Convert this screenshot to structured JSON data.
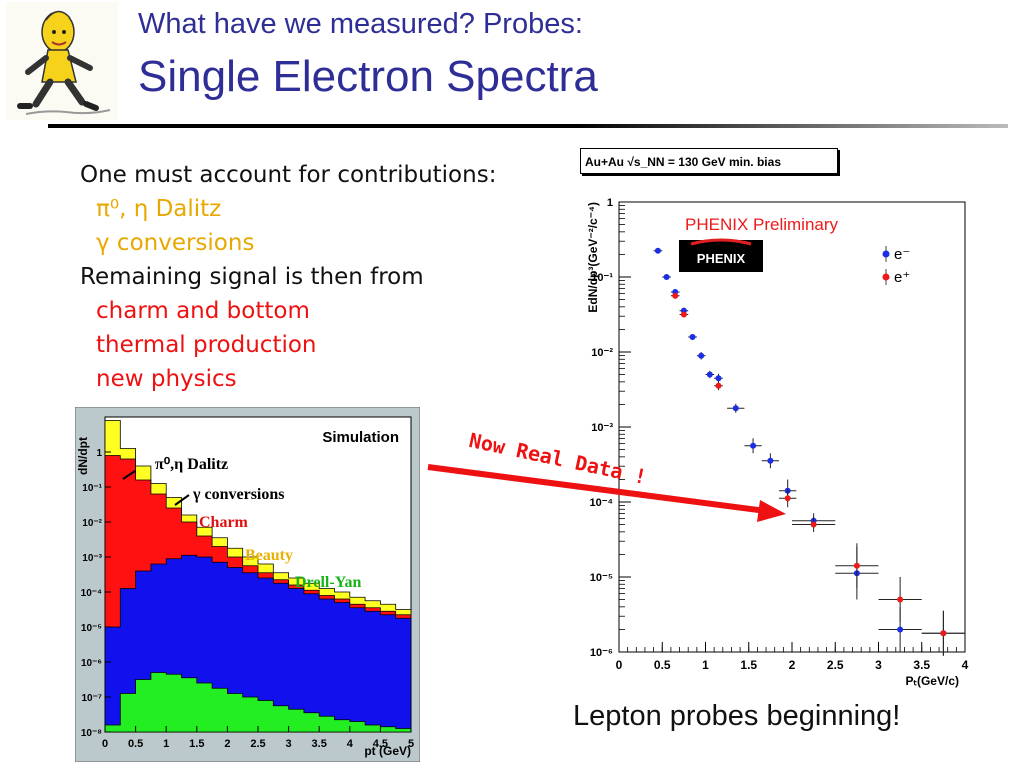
{
  "header": {
    "title_line1": "What have we measured? Probes:",
    "title_line2": "Single Electron Spectra"
  },
  "bullets": [
    {
      "text": "One must account for contributions:",
      "level": 0,
      "color": "black"
    },
    {
      "text": "π⁰, η Dalitz",
      "level": 1,
      "color": "yellow"
    },
    {
      "text": "γ conversions",
      "level": 1,
      "color": "yellow"
    },
    {
      "text": "Remaining signal is then from",
      "level": 0,
      "color": "black"
    },
    {
      "text": "charm and bottom",
      "level": 1,
      "color": "red"
    },
    {
      "text": "thermal production",
      "level": 1,
      "color": "red"
    },
    {
      "text": "new physics",
      "level": 1,
      "color": "red"
    }
  ],
  "colors": {
    "title": "#2e2e96",
    "yellow_text": "#e8a800",
    "red_text": "#ee1111",
    "e_minus_marker": "#1a2ee6",
    "e_plus_marker": "#ee1a1a",
    "sim_yellow": "#ffff22",
    "sim_red": "#ff1111",
    "sim_blue": "#1111ee",
    "sim_green": "#22ee22"
  },
  "annotation": {
    "now_real_data": "Now Real Data !",
    "footer": "Lepton probes beginning!"
  },
  "chart_data": [
    {
      "type": "area",
      "title": "Simulation",
      "xlabel": "pt (GeV)",
      "ylabel": "dN/dpt",
      "xlim": [
        0,
        5
      ],
      "ylim_log10": [
        -8,
        1
      ],
      "y_scale": "log",
      "x_ticks": [
        "0",
        "0.5",
        "1",
        "1.5",
        "2",
        "2.5",
        "3",
        "3.5",
        "4",
        "4.5",
        "5"
      ],
      "y_ticks": [
        "1",
        "10⁻¹",
        "10⁻²",
        "10⁻³",
        "10⁻⁴",
        "10⁻⁵",
        "10⁻⁶",
        "10⁻⁷",
        "10⁻⁸"
      ],
      "labels": {
        "dalitz": "π⁰,η Dalitz",
        "conversions": "γ conversions",
        "charm": "Charm",
        "beauty": "Beauty",
        "drell_yan": "Drell-Yan"
      },
      "x": [
        0,
        0.25,
        0.5,
        0.75,
        1,
        1.25,
        1.5,
        1.75,
        2,
        2.25,
        2.5,
        2.75,
        3,
        3.25,
        3.5,
        3.75,
        4,
        4.25,
        4.5,
        4.75,
        5
      ],
      "series": [
        {
          "key": "total",
          "color": "#ffff22",
          "log10_values": [
            0.9,
            0.1,
            -0.4,
            -0.9,
            -1.3,
            -1.8,
            -2.15,
            -2.45,
            -2.75,
            -3.0,
            -3.2,
            -3.45,
            -3.6,
            -3.75,
            -3.9,
            -4.0,
            -4.15,
            -4.25,
            -4.35,
            -4.5,
            -4.6
          ]
        },
        {
          "key": "charm_total",
          "color": "#ff1111",
          "log10_values": [
            -0.1,
            -0.2,
            -0.8,
            -1.2,
            -1.6,
            -2.0,
            -2.4,
            -2.7,
            -3.0,
            -3.25,
            -3.45,
            -3.65,
            -3.8,
            -3.95,
            -4.1,
            -4.2,
            -4.35,
            -4.45,
            -4.55,
            -4.65,
            -4.75
          ]
        },
        {
          "key": "beauty_total",
          "color": "#1111ee",
          "log10_values": [
            -5.0,
            -3.9,
            -3.4,
            -3.2,
            -3.05,
            -2.95,
            -3.0,
            -3.15,
            -3.3,
            -3.45,
            -3.6,
            -3.75,
            -3.9,
            -4.05,
            -4.2,
            -4.3,
            -4.45,
            -4.55,
            -4.65,
            -4.75,
            -4.85
          ]
        },
        {
          "key": "drell_yan",
          "color": "#22ee22",
          "log10_values": [
            -7.8,
            -6.9,
            -6.5,
            -6.3,
            -6.35,
            -6.45,
            -6.6,
            -6.75,
            -6.9,
            -7.0,
            -7.1,
            -7.25,
            -7.35,
            -7.45,
            -7.55,
            -7.65,
            -7.7,
            -7.8,
            -7.85,
            -7.9,
            -7.95
          ]
        }
      ]
    },
    {
      "type": "scatter",
      "title": "PHENIX Preliminary",
      "legend_box": "Au+Au √s_NN = 130 GeV min. bias",
      "logo_text": "PHENIX",
      "xlabel": "Pₜ(GeV/c)",
      "ylabel": "EdN/dp³(GeV⁻²/c⁻⁴)",
      "xlim": [
        0,
        4
      ],
      "ylim_log10": [
        -6,
        0
      ],
      "y_scale": "log",
      "x_ticks": [
        "0",
        "0.5",
        "1",
        "1.5",
        "2",
        "2.5",
        "3",
        "3.5",
        "4"
      ],
      "y_ticks": [
        "1",
        "10⁻¹",
        "10⁻²",
        "10⁻³",
        "10⁻⁴",
        "10⁻⁵",
        "10⁻⁶"
      ],
      "legend_position": "top-right",
      "series": [
        {
          "name": "e⁻",
          "color": "#1a2ee6",
          "x": [
            0.45,
            0.55,
            0.65,
            0.75,
            0.85,
            0.95,
            1.05,
            1.15,
            1.35,
            1.55,
            1.75,
            1.95,
            2.25,
            2.75,
            3.25,
            3.75
          ],
          "log10_y": [
            -0.65,
            -1.0,
            -1.2,
            -1.45,
            -1.8,
            -2.05,
            -2.3,
            -2.35,
            -2.75,
            -3.25,
            -3.45,
            -3.85,
            -4.25,
            -4.95,
            -5.7,
            -5.75
          ],
          "x_err": [
            0.05,
            0.05,
            0.05,
            0.05,
            0.05,
            0.05,
            0.05,
            0.05,
            0.1,
            0.1,
            0.1,
            0.1,
            0.25,
            0.25,
            0.25,
            0.25
          ],
          "log10_err": [
            0.0,
            0.0,
            0.04,
            0.04,
            0.04,
            0.05,
            0.05,
            0.06,
            0.06,
            0.1,
            0.1,
            0.15,
            0.1,
            0.35,
            0.3,
            0.3
          ]
        },
        {
          "name": "e⁺",
          "color": "#ee1a1a",
          "x": [
            0.65,
            0.75,
            1.15,
            1.95,
            2.25,
            2.75,
            3.25,
            3.75
          ],
          "log10_y": [
            -1.25,
            -1.5,
            -2.45,
            -3.95,
            -4.3,
            -4.85,
            -5.3,
            -5.75
          ],
          "x_err": [
            0.05,
            0.05,
            0.05,
            0.1,
            0.25,
            0.25,
            0.25,
            0.25
          ],
          "log10_err": [
            0.04,
            0.04,
            0.06,
            0.12,
            0.1,
            0.3,
            0.3,
            0.3
          ]
        }
      ]
    }
  ]
}
